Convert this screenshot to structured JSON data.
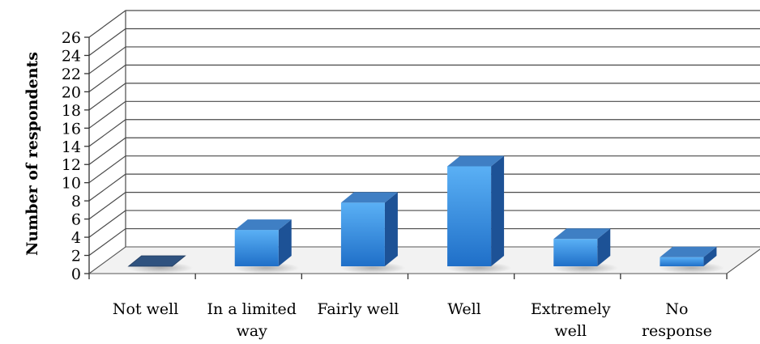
{
  "chart_data": {
    "type": "bar",
    "categories": [
      [
        "Not well"
      ],
      [
        "In a limited",
        "way"
      ],
      [
        "Fairly well"
      ],
      [
        "Well"
      ],
      [
        "Extremely",
        "well"
      ],
      [
        "No",
        "response"
      ]
    ],
    "values": [
      0,
      4,
      7,
      11,
      3,
      1
    ],
    "ylabel": "Number of respondents",
    "ylim": [
      0,
      26
    ],
    "yticks": [
      0,
      2,
      4,
      6,
      8,
      10,
      12,
      14,
      16,
      18,
      20,
      22,
      24,
      26
    ],
    "grid": true,
    "legend": "none",
    "colors": {
      "bar_front_top": "#5ab0f5",
      "bar_front_bottom": "#1f6fc8",
      "bar_side": "#1d5296",
      "bar_top": "#3f7fc4",
      "zero_bar": "#2f527f"
    }
  }
}
